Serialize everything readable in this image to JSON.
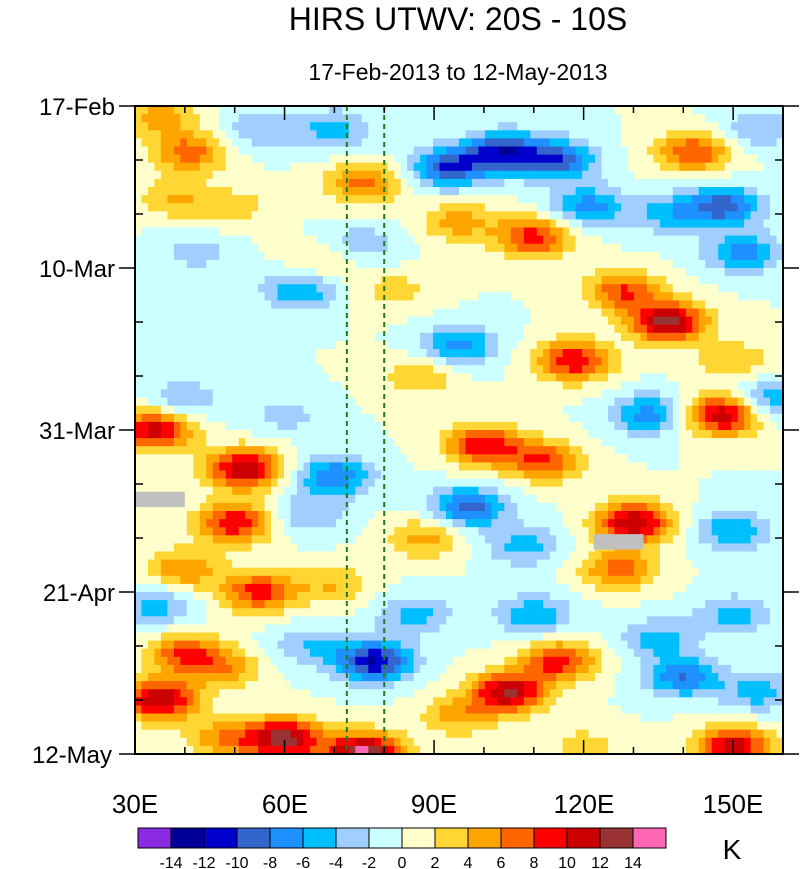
{
  "chart_data": {
    "type": "heatmap",
    "title": "HIRS UTWV: 20S - 10S",
    "subtitle": "17-Feb-2013 to 12-May-2013",
    "x_axis": {
      "range": [
        30,
        160
      ],
      "major_ticks": [
        30,
        60,
        90,
        120,
        150
      ],
      "major_labels": [
        "30E",
        "60E",
        "90E",
        "120E",
        "150E"
      ],
      "minor_step": 10
    },
    "y_axis": {
      "range_days": [
        0,
        84
      ],
      "major_ticks_days": [
        0,
        21,
        42,
        63,
        84
      ],
      "major_labels": [
        "17-Feb",
        "10-Mar",
        "31-Mar",
        "21-Apr",
        "12-May"
      ],
      "minor_step_days": 7,
      "direction": "time increases downward"
    },
    "reference_lines_lon": [
      72.5,
      80
    ],
    "missing_regions": [
      {
        "lon_range": [
          30,
          40
        ],
        "day_range": [
          50,
          52
        ]
      },
      {
        "lon_range": [
          122,
          132
        ],
        "day_range": [
          55.5,
          57.5
        ]
      }
    ],
    "colorbar": {
      "unit": "K",
      "levels": [
        -14,
        -12,
        -10,
        -8,
        -6,
        -4,
        -2,
        0,
        2,
        4,
        6,
        8,
        10,
        12,
        14
      ],
      "level_labels": [
        "-14",
        "-12",
        "-10",
        "-8",
        "-6",
        "-4",
        "-2",
        "0",
        "2",
        "4",
        "6",
        "8",
        "10",
        "12",
        "14"
      ],
      "colors": [
        "#8a2be2",
        "#000099",
        "#0000cc",
        "#3366cc",
        "#1e90ff",
        "#00bfff",
        "#a0cfff",
        "#ccffff",
        "#ffffcc",
        "#ffd633",
        "#ffa500",
        "#ff6600",
        "#ff0000",
        "#cc0000",
        "#993333",
        "#ff66b3"
      ]
    },
    "anomaly_features": [
      {
        "lon": 35,
        "day": 1.5,
        "value": 5
      },
      {
        "lon": 41,
        "day": 6,
        "value": 7
      },
      {
        "lon": 38,
        "day": 12,
        "value": 4
      },
      {
        "lon": 42,
        "day": 19,
        "value": -3
      },
      {
        "lon": 55,
        "day": 3,
        "value": -4
      },
      {
        "lon": 50,
        "day": 13,
        "value": 3
      },
      {
        "lon": 70,
        "day": 3,
        "value": -5
      },
      {
        "lon": 76,
        "day": 10,
        "value": 7
      },
      {
        "lon": 68,
        "day": 20,
        "value": 3
      },
      {
        "lon": 63,
        "day": 24,
        "value": -6
      },
      {
        "lon": 75,
        "day": 18,
        "value": -4
      },
      {
        "lon": 82,
        "day": 24,
        "value": 3
      },
      {
        "lon": 93,
        "day": 8,
        "value": -10
      },
      {
        "lon": 104,
        "day": 6,
        "value": -11
      },
      {
        "lon": 115,
        "day": 7,
        "value": -9
      },
      {
        "lon": 95,
        "day": 15,
        "value": 5
      },
      {
        "lon": 110,
        "day": 17,
        "value": 9
      },
      {
        "lon": 121,
        "day": 13,
        "value": -7
      },
      {
        "lon": 142,
        "day": 6,
        "value": 8
      },
      {
        "lon": 155,
        "day": 3,
        "value": -4
      },
      {
        "lon": 148,
        "day": 13,
        "value": -9
      },
      {
        "lon": 137,
        "day": 14,
        "value": -5
      },
      {
        "lon": 152,
        "day": 19,
        "value": -7
      },
      {
        "lon": 128,
        "day": 24,
        "value": 8
      },
      {
        "lon": 137,
        "day": 28,
        "value": 13
      },
      {
        "lon": 118,
        "day": 33,
        "value": 10
      },
      {
        "lon": 133,
        "day": 40,
        "value": -7
      },
      {
        "lon": 150,
        "day": 33,
        "value": 4
      },
      {
        "lon": 157,
        "day": 38,
        "value": -6
      },
      {
        "lon": 95,
        "day": 31,
        "value": -7
      },
      {
        "lon": 87,
        "day": 35,
        "value": 4
      },
      {
        "lon": 100,
        "day": 44,
        "value": 10
      },
      {
        "lon": 112,
        "day": 46,
        "value": 8
      },
      {
        "lon": 148,
        "day": 40,
        "value": 12
      },
      {
        "lon": 34,
        "day": 42,
        "value": 11
      },
      {
        "lon": 40,
        "day": 38,
        "value": -4
      },
      {
        "lon": 52,
        "day": 47,
        "value": 12
      },
      {
        "lon": 60,
        "day": 40,
        "value": -3
      },
      {
        "lon": 70,
        "day": 48,
        "value": -8
      },
      {
        "lon": 65,
        "day": 53,
        "value": -4
      },
      {
        "lon": 50,
        "day": 54,
        "value": 10
      },
      {
        "lon": 97,
        "day": 52,
        "value": -9
      },
      {
        "lon": 88,
        "day": 56,
        "value": 5
      },
      {
        "lon": 108,
        "day": 57,
        "value": -5
      },
      {
        "lon": 130,
        "day": 54,
        "value": 12
      },
      {
        "lon": 127,
        "day": 60,
        "value": 7
      },
      {
        "lon": 150,
        "day": 55,
        "value": -6
      },
      {
        "lon": 40,
        "day": 60,
        "value": 6
      },
      {
        "lon": 55,
        "day": 63,
        "value": 9
      },
      {
        "lon": 34,
        "day": 65,
        "value": -5
      },
      {
        "lon": 70,
        "day": 62,
        "value": 4
      },
      {
        "lon": 86,
        "day": 66,
        "value": -5
      },
      {
        "lon": 110,
        "day": 66,
        "value": -6
      },
      {
        "lon": 150,
        "day": 66,
        "value": -5
      },
      {
        "lon": 40,
        "day": 71,
        "value": 8
      },
      {
        "lon": 35,
        "day": 77,
        "value": 12
      },
      {
        "lon": 48,
        "day": 73,
        "value": 5
      },
      {
        "lon": 78,
        "day": 72,
        "value": -12
      },
      {
        "lon": 65,
        "day": 70,
        "value": -4
      },
      {
        "lon": 105,
        "day": 76,
        "value": 12
      },
      {
        "lon": 115,
        "day": 72,
        "value": 9
      },
      {
        "lon": 95,
        "day": 79,
        "value": 5
      },
      {
        "lon": 140,
        "day": 74,
        "value": -8
      },
      {
        "lon": 135,
        "day": 69,
        "value": -5
      },
      {
        "lon": 155,
        "day": 76,
        "value": -5
      },
      {
        "lon": 60,
        "day": 82,
        "value": 13
      },
      {
        "lon": 76,
        "day": 84,
        "value": 15
      },
      {
        "lon": 48,
        "day": 82,
        "value": 6
      },
      {
        "lon": 120,
        "day": 83,
        "value": 3
      },
      {
        "lon": 150,
        "day": 83,
        "value": 11
      }
    ]
  }
}
